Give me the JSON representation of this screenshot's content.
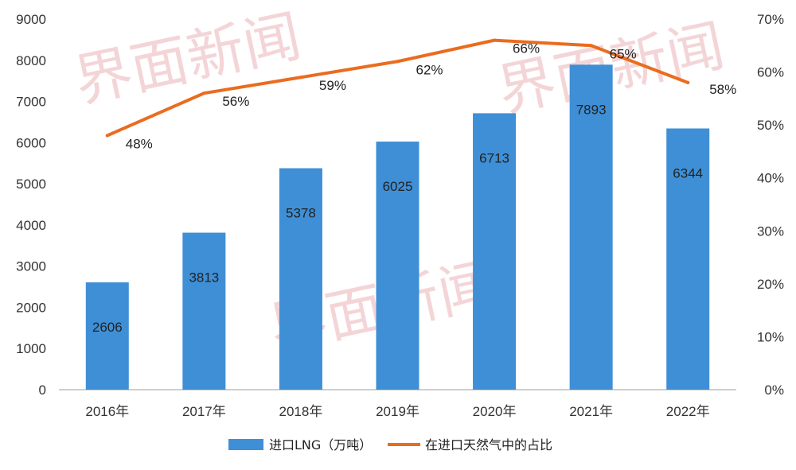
{
  "watermark_text": "界面新闻",
  "colors": {
    "bar": "#3e8fd6",
    "line": "#ea6c1f",
    "axis": "#bfbfbf"
  },
  "chart_data": {
    "type": "bar",
    "categories": [
      "2016年",
      "2017年",
      "2018年",
      "2019年",
      "2020年",
      "2021年",
      "2022年"
    ],
    "series": [
      {
        "name": "进口LNG（万吨）",
        "type": "bar",
        "axis": "left",
        "values": [
          2606,
          3813,
          5378,
          6025,
          6713,
          7893,
          6344
        ],
        "labels": [
          "2606",
          "3813",
          "5378",
          "6025",
          "6713",
          "7893",
          "6344"
        ]
      },
      {
        "name": "在进口天然气中的占比",
        "type": "line",
        "axis": "right",
        "values": [
          48,
          56,
          59,
          62,
          66,
          65,
          58
        ],
        "labels": [
          "48%",
          "56%",
          "59%",
          "62%",
          "66%",
          "65%",
          "58%"
        ]
      }
    ],
    "y_left": {
      "ylim": [
        0,
        9000
      ],
      "ticks": [
        "0",
        "1000",
        "2000",
        "3000",
        "4000",
        "5000",
        "6000",
        "7000",
        "8000",
        "9000"
      ]
    },
    "y_right": {
      "ylim": [
        0,
        70
      ],
      "ticks": [
        "0%",
        "10%",
        "20%",
        "30%",
        "40%",
        "50%",
        "60%",
        "70%"
      ]
    },
    "grid": false,
    "legend_position": "bottom"
  }
}
